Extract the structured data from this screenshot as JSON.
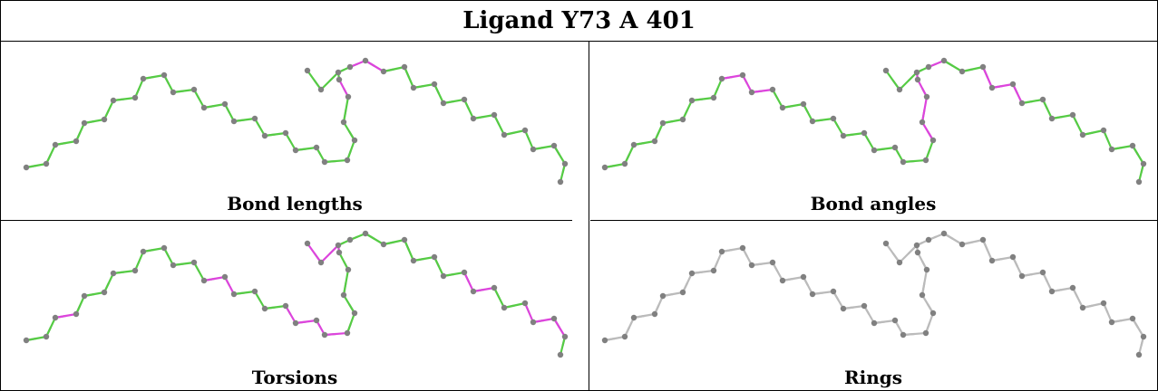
{
  "title": "Ligand Y73 A 401",
  "panels": [
    {
      "caption": "Bond lengths"
    },
    {
      "caption": "Bond angles"
    },
    {
      "caption": "Torsions"
    },
    {
      "caption": "Rings"
    }
  ],
  "colors": {
    "ok": "#55cc44",
    "outlier": "#dd44dd",
    "neutral": "#bbbbbb",
    "atom": "#808080"
  }
}
